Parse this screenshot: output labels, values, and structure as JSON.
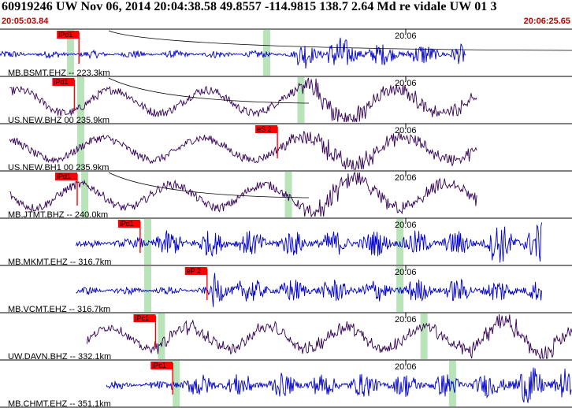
{
  "header": {
    "title": "60919246 UW Nov 06, 2014 20:04:38.58    49.8557 -114.9815 138.7 2.64 Md re vidale UW 01   3"
  },
  "time_start": "20:05:03.84",
  "time_end": "20:06:25.65",
  "colors": {
    "trace_blue": "#0000cc",
    "trace_purple": "#330055",
    "pick_red": "#ff0000",
    "window_green": "#b9e3b9",
    "divider": "#000000"
  },
  "traces": [
    {
      "label": "MB.BSMT.EHZ -- 223.3km",
      "tick_label": "20:06",
      "pick_label": "iPd1",
      "color": "#0000cc",
      "kind": "hf",
      "start": 0.0,
      "end": 0.815,
      "amp": 0.55,
      "freq": 2.4,
      "pick_t": 0.138,
      "pick_color": "#ff0000",
      "green": [
        0.117,
        0.46
      ],
      "burst": [
        0.53,
        0.64
      ],
      "arrival": 0.52,
      "curve": true
    },
    {
      "label": "US.NEW.BHZ 00 235.9km",
      "tick_label": "20:06",
      "pick_label": "iPd1",
      "color": "#330055",
      "kind": "lf",
      "start": 0.017,
      "end": 0.835,
      "amp": 0.75,
      "freq": 0.35,
      "pick_t": 0.13,
      "pick_color": "#ff0000",
      "green": [
        0.135,
        0.52
      ],
      "burst": [
        0.53,
        0.64
      ],
      "arrival": 0.52,
      "curve": true
    },
    {
      "label": "US.NEW.BH1 00 235.9km",
      "tick_label": "20:06",
      "pick_label": "eS 2",
      "color": "#330055",
      "kind": "lf",
      "start": 0.017,
      "end": 0.835,
      "amp": 0.7,
      "freq": 0.33,
      "pick_t": 0.485,
      "pick_color": "#ff0000",
      "green": [
        0.135
      ],
      "burst": [
        0.55,
        0.66
      ],
      "arrival": 0.49,
      "curve": false
    },
    {
      "label": "MB.JTMT.BHZ -- 240.0km",
      "tick_label": "20:06",
      "pick_label": "iPd1",
      "color": "#330055",
      "kind": "lf",
      "start": 0.017,
      "end": 0.835,
      "amp": 0.75,
      "freq": 0.36,
      "pick_t": 0.135,
      "pick_color": "#ff0000",
      "green": [
        0.142,
        0.498
      ],
      "burst": [
        0.53,
        0.64
      ],
      "arrival": 0.53,
      "curve": true
    },
    {
      "label": "MB.MKMT.EHZ -- 316.7km",
      "tick_label": "20:06",
      "pick_label": "iPd1",
      "color": "#0000cc",
      "kind": "hf",
      "start": 0.133,
      "end": 0.948,
      "amp": 0.65,
      "freq": 2.6,
      "pick_t": 0.245,
      "pick_color": "#ff0000",
      "green": [
        0.252,
        0.693
      ],
      "burst": [
        0.86,
        0.95
      ],
      "arrival": 0.24,
      "curve": false
    },
    {
      "label": "MB.VCMT.EHZ -- 316.7km",
      "tick_label": "20:06",
      "pick_label": "eP 2",
      "color": "#0000cc",
      "kind": "hf",
      "start": 0.133,
      "end": 0.948,
      "amp": 0.6,
      "freq": 2.5,
      "pick_t": 0.362,
      "pick_color": "#ff0000",
      "green": [
        0.252,
        0.693
      ],
      "burst": [
        0.37,
        0.42
      ],
      "arrival": 0.37,
      "curve": false
    },
    {
      "label": "UW.DAVN.BHZ -- 332.1km",
      "tick_label": "20:06",
      "pick_label": "iPc1",
      "color": "#330055",
      "kind": "lf",
      "start": 0.152,
      "end": 1.0,
      "amp": 0.7,
      "freq": 0.42,
      "pick_t": 0.272,
      "pick_color": "#ff0000",
      "green": [
        0.276,
        0.735
      ],
      "burst": [
        0.82,
        0.97
      ],
      "arrival": 0.26,
      "curve": false
    },
    {
      "label": "MB.CHMT.EHZ -- 351.1km",
      "tick_label": "20:06",
      "pick_label": "iPc1",
      "color": "#0000cc",
      "kind": "hf",
      "start": 0.186,
      "end": 1.0,
      "amp": 0.6,
      "freq": 2.6,
      "pick_t": 0.302,
      "pick_color": "#ff0000",
      "green": [
        0.302,
        0.785
      ],
      "burst": [
        0.88,
        0.99
      ],
      "arrival": 0.3,
      "curve": false
    }
  ]
}
